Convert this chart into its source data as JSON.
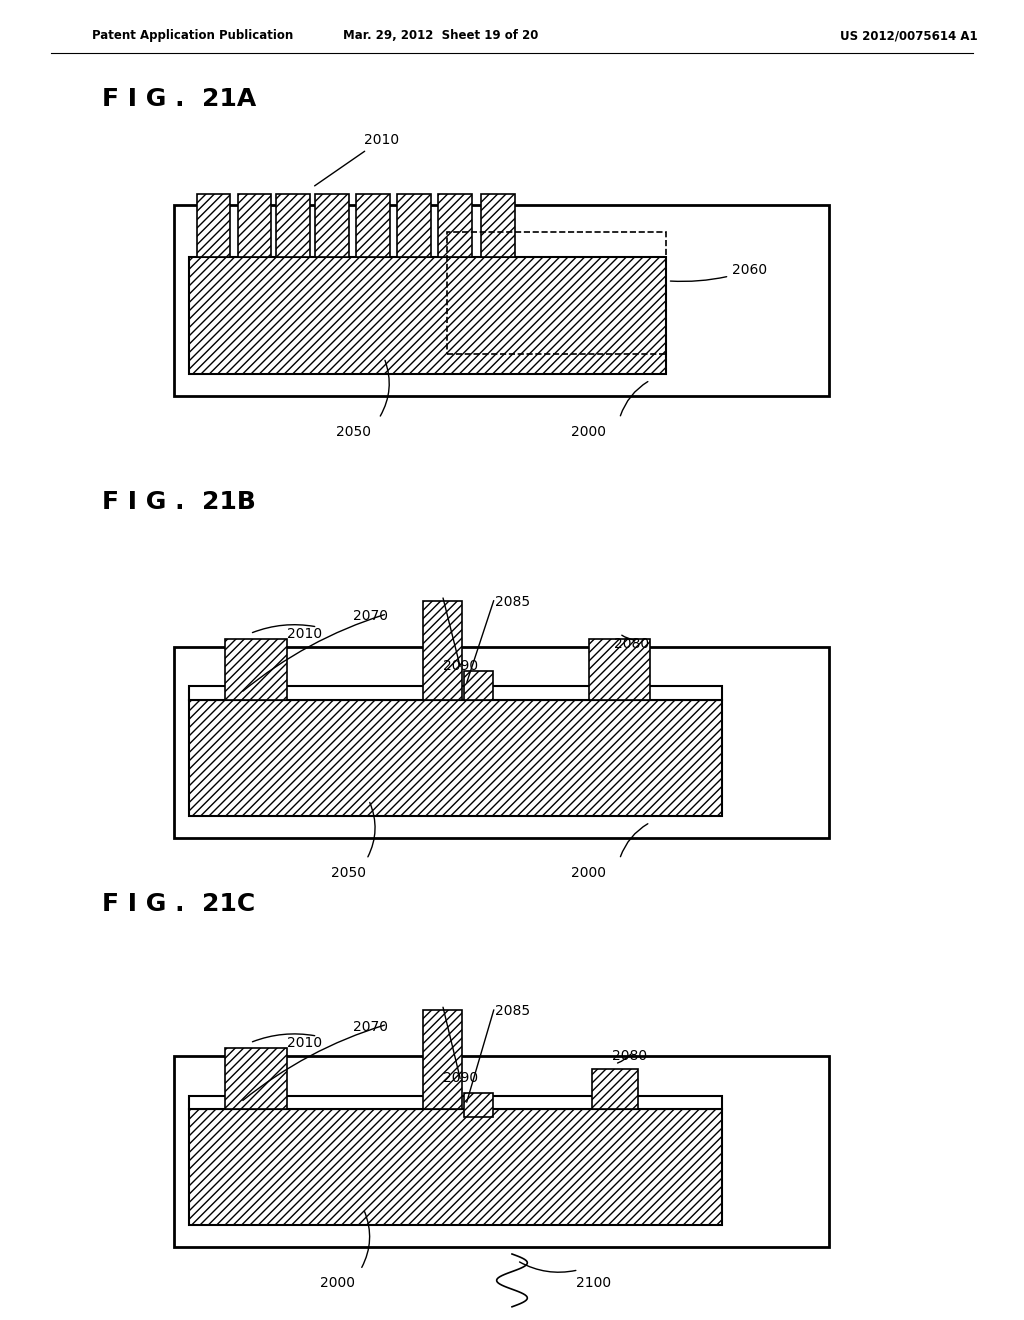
{
  "header_left": "Patent Application Publication",
  "header_mid": "Mar. 29, 2012  Sheet 19 of 20",
  "header_right": "US 2012/0075614 A1",
  "bg_color": "#ffffff"
}
